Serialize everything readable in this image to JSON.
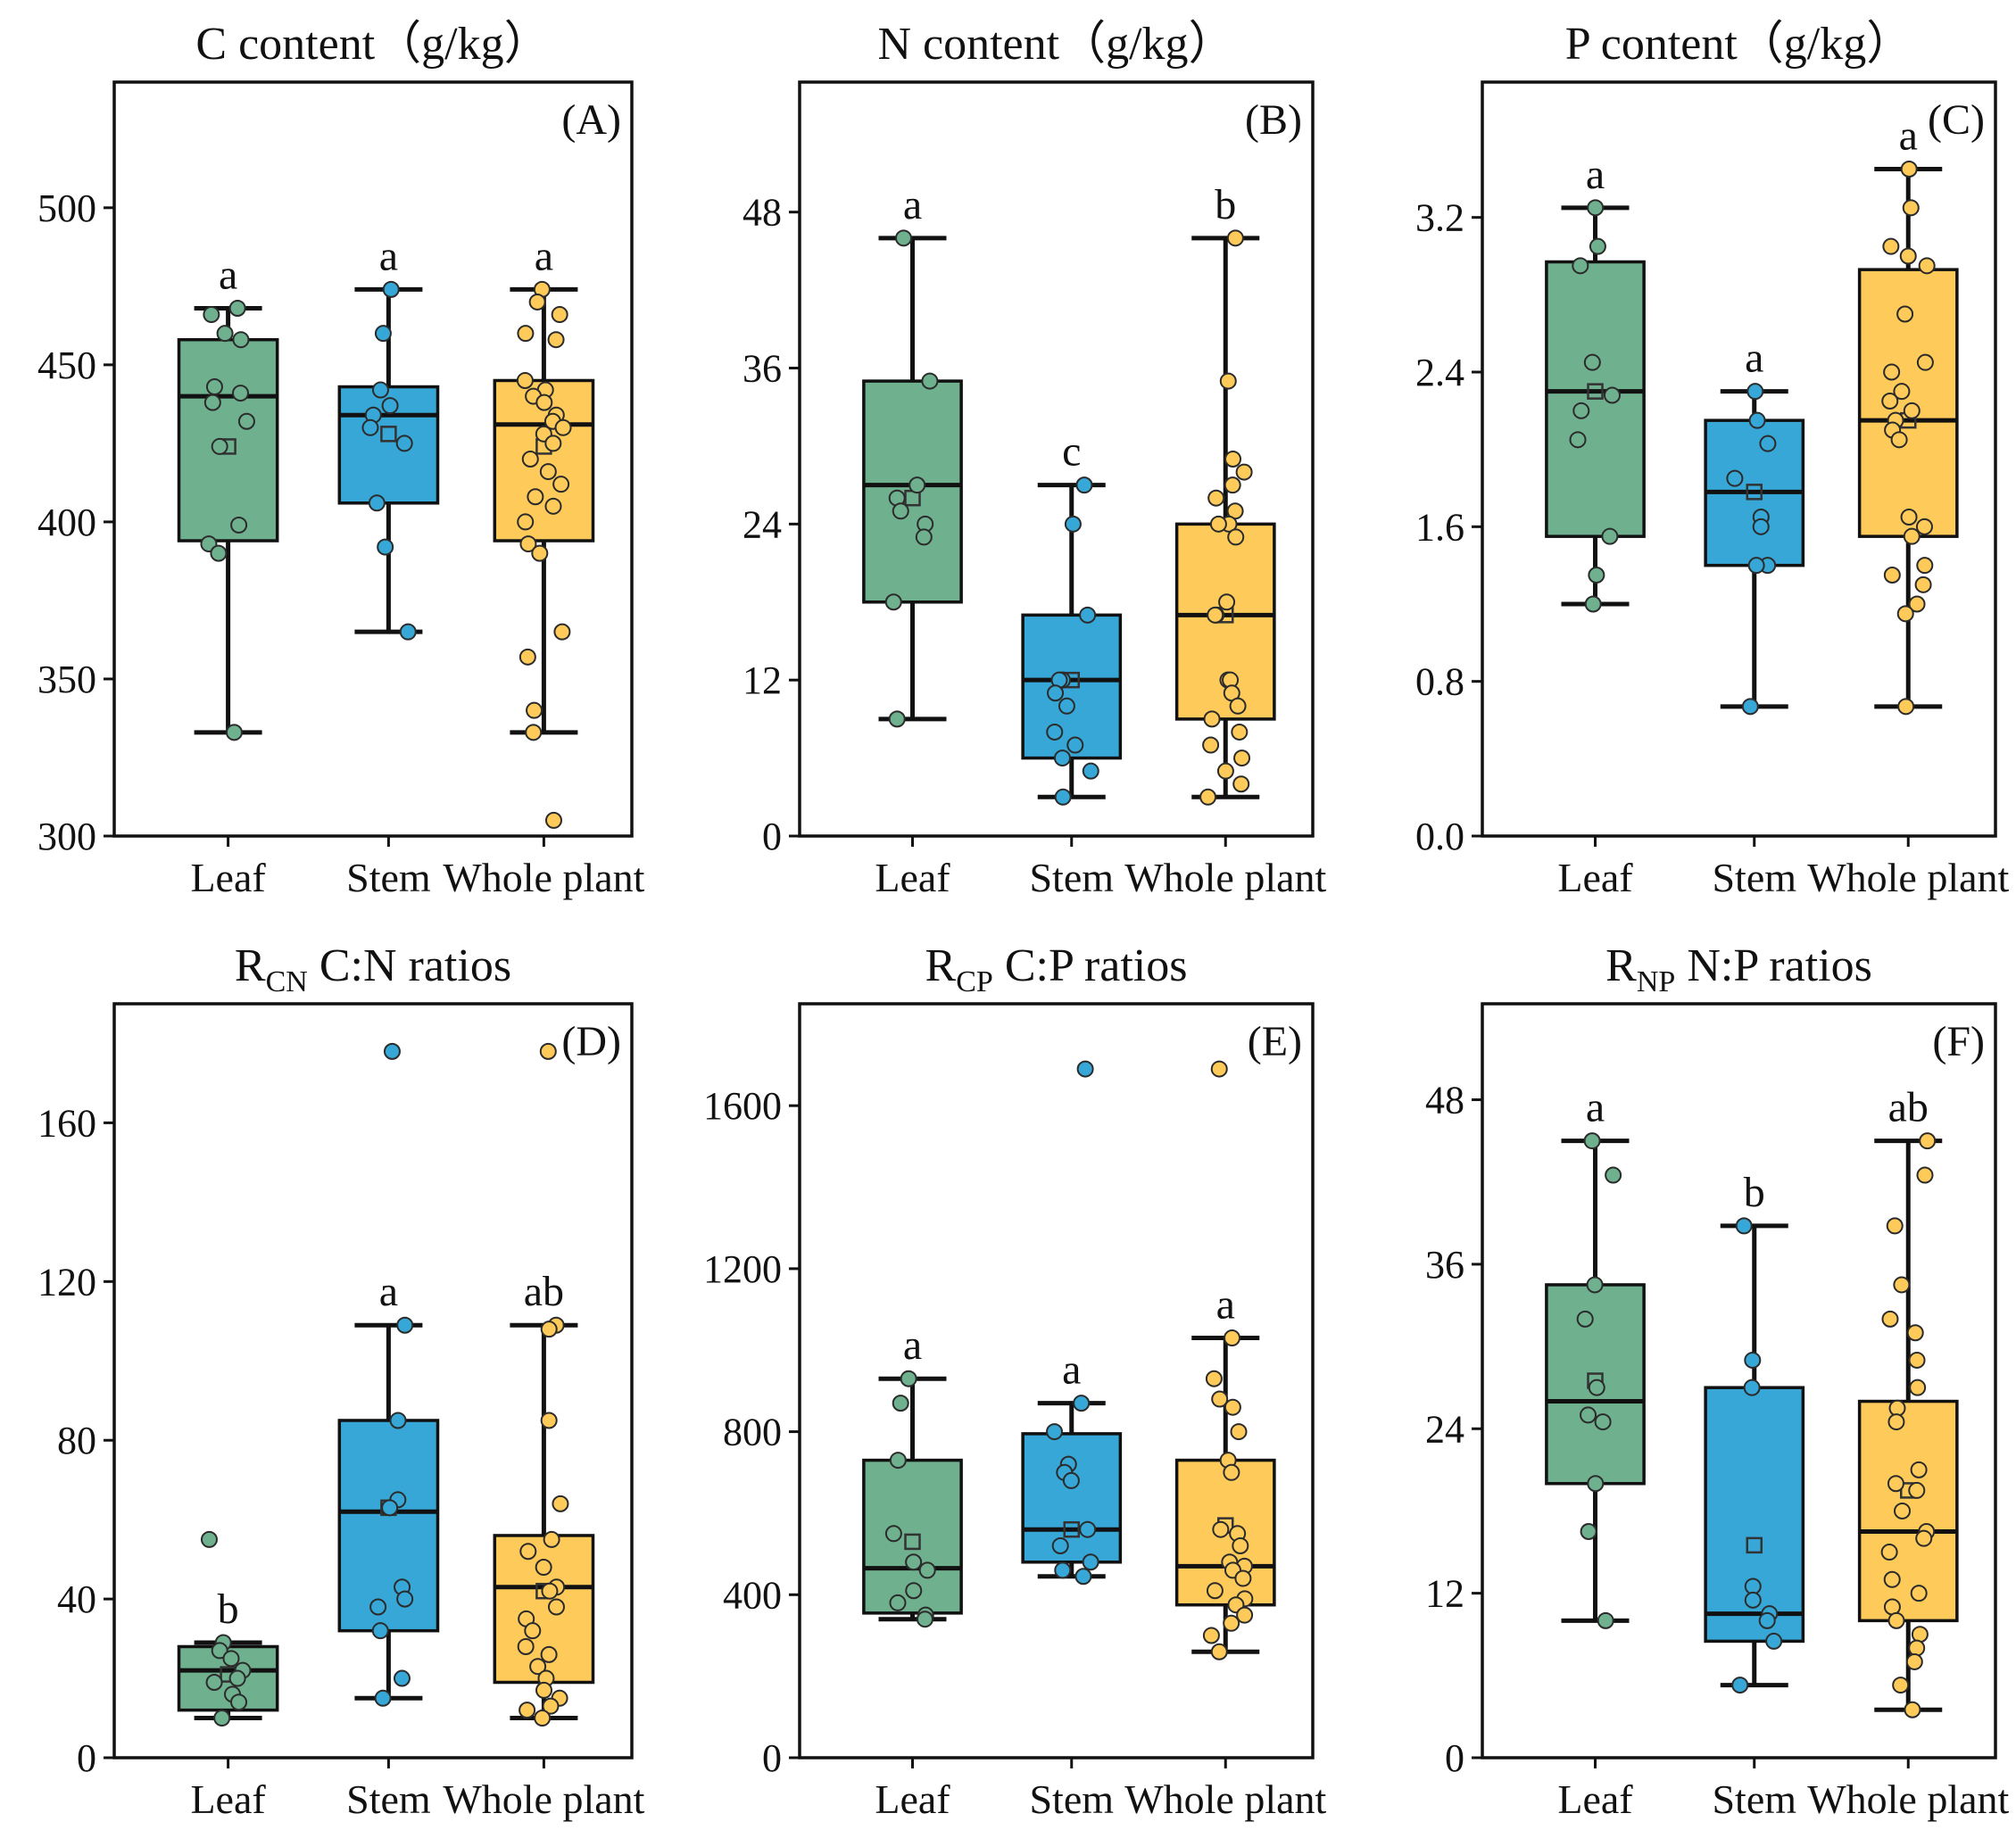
{
  "colors": {
    "Leaf": "#6fb08f",
    "Stem": "#36a7d6",
    "Whole plant": "#fecb5a"
  },
  "chart_data": [
    {
      "type": "box",
      "id": "A",
      "title": "C content（g/kg）",
      "title_sub": "",
      "panel_label": "(A)",
      "ylim": [
        300,
        540
      ],
      "yticks": [
        300,
        350,
        400,
        450,
        500
      ],
      "categories": [
        "Leaf",
        "Stem",
        "Whole plant"
      ],
      "groups": [
        {
          "name": "Leaf",
          "letter": "a",
          "whisker_low": 333,
          "q1": 394,
          "median": 440,
          "q3": 458,
          "whisker_high": 468,
          "mean": 424,
          "points": [
            468,
            466,
            460,
            458,
            443,
            441,
            438,
            432,
            424,
            399,
            393,
            390,
            333
          ]
        },
        {
          "name": "Stem",
          "letter": "a",
          "whisker_low": 365,
          "q1": 406,
          "median": 434,
          "q3": 443,
          "whisker_high": 474,
          "mean": 428,
          "points": [
            474,
            460,
            442,
            437,
            434,
            430,
            425,
            406,
            392,
            365
          ]
        },
        {
          "name": "Whole plant",
          "letter": "a",
          "whisker_low": 333,
          "q1": 394,
          "median": 431,
          "q3": 445,
          "whisker_high": 474,
          "mean": 424,
          "points": [
            474,
            470,
            466,
            460,
            458,
            445,
            442,
            440,
            438,
            434,
            432,
            430,
            428,
            425,
            420,
            416,
            412,
            408,
            405,
            400,
            393,
            390,
            365,
            357,
            340,
            333,
            305
          ]
        }
      ]
    },
    {
      "type": "box",
      "id": "B",
      "title": "N content（g/kg）",
      "title_sub": "",
      "panel_label": "(B)",
      "ylim": [
        0,
        58
      ],
      "yticks": [
        0,
        12,
        24,
        36,
        48
      ],
      "categories": [
        "Leaf",
        "Stem",
        "Whole plant"
      ],
      "groups": [
        {
          "name": "Leaf",
          "letter": "a",
          "whisker_low": 9,
          "q1": 18,
          "median": 27,
          "q3": 35,
          "whisker_high": 46,
          "mean": 26,
          "points": [
            46,
            35,
            27,
            26,
            25,
            24,
            23,
            18,
            9
          ]
        },
        {
          "name": "Stem",
          "letter": "c",
          "whisker_low": 3,
          "q1": 6,
          "median": 12,
          "q3": 17,
          "whisker_high": 27,
          "mean": 12,
          "points": [
            27,
            24,
            17,
            12,
            12,
            11,
            10,
            8,
            7,
            6,
            5,
            3
          ]
        },
        {
          "name": "Whole plant",
          "letter": "b",
          "whisker_low": 3,
          "q1": 9,
          "median": 17,
          "q3": 24,
          "whisker_high": 46,
          "mean": 17,
          "points": [
            46,
            35,
            29,
            28,
            27,
            26,
            25,
            24,
            24,
            23,
            18,
            17,
            17,
            12,
            12,
            11,
            10,
            9,
            8,
            7,
            6,
            5,
            4,
            3
          ]
        }
      ]
    },
    {
      "type": "box",
      "id": "C",
      "title": "P content（g/kg）",
      "title_sub": "",
      "panel_label": "(C)",
      "ylim": [
        0,
        3.9
      ],
      "yticks": [
        0.0,
        0.8,
        1.6,
        2.4,
        3.2
      ],
      "yticks_text": [
        "0.0",
        "0.8",
        "1.6",
        "2.4",
        "3.2"
      ],
      "categories": [
        "Leaf",
        "Stem",
        "Whole plant"
      ],
      "groups": [
        {
          "name": "Leaf",
          "letter": "a",
          "whisker_low": 1.2,
          "q1": 1.55,
          "median": 2.3,
          "q3": 2.97,
          "whisker_high": 3.25,
          "mean": 2.3,
          "points": [
            3.25,
            3.05,
            2.95,
            2.45,
            2.28,
            2.2,
            2.05,
            1.55,
            1.35,
            1.2
          ]
        },
        {
          "name": "Stem",
          "letter": "a",
          "whisker_low": 0.67,
          "q1": 1.4,
          "median": 1.78,
          "q3": 2.15,
          "whisker_high": 2.3,
          "mean": 1.78,
          "points": [
            2.3,
            2.15,
            2.03,
            1.85,
            1.65,
            1.6,
            1.4,
            1.4,
            0.67
          ]
        },
        {
          "name": "Whole plant",
          "letter": "a",
          "whisker_low": 0.67,
          "q1": 1.55,
          "median": 2.15,
          "q3": 2.93,
          "whisker_high": 3.45,
          "mean": 2.15,
          "points": [
            3.45,
            3.25,
            3.05,
            3.0,
            2.95,
            2.7,
            2.45,
            2.4,
            2.3,
            2.25,
            2.2,
            2.15,
            2.1,
            2.05,
            1.65,
            1.6,
            1.55,
            1.4,
            1.35,
            1.3,
            1.2,
            1.15,
            0.67
          ]
        }
      ]
    },
    {
      "type": "box",
      "id": "D",
      "title": "R",
      "title_sub": "CN",
      "title_rest": " C:N ratios",
      "panel_label": "(D)",
      "ylim": [
        0,
        190
      ],
      "yticks": [
        0,
        40,
        80,
        120,
        160
      ],
      "categories": [
        "Leaf",
        "Stem",
        "Whole plant"
      ],
      "groups": [
        {
          "name": "Leaf",
          "letter": "b",
          "whisker_low": 10,
          "q1": 12,
          "median": 22,
          "q3": 28,
          "whisker_high": 29,
          "mean": 21,
          "points": [
            55,
            29,
            27,
            25,
            22,
            20,
            19,
            16,
            14,
            10
          ]
        },
        {
          "name": "Stem",
          "letter": "a",
          "whisker_low": 15,
          "q1": 32,
          "median": 62,
          "q3": 85,
          "whisker_high": 109,
          "mean": 63,
          "points": [
            178,
            109,
            85,
            65,
            63,
            43,
            40,
            38,
            32,
            20,
            15
          ]
        },
        {
          "name": "Whole plant",
          "letter": "ab",
          "whisker_low": 10,
          "q1": 19,
          "median": 43,
          "q3": 56,
          "whisker_high": 109,
          "mean": 42,
          "points": [
            178,
            109,
            108,
            85,
            64,
            55,
            52,
            48,
            43,
            42,
            38,
            35,
            32,
            28,
            26,
            23,
            20,
            17,
            15,
            13,
            12,
            10
          ]
        }
      ]
    },
    {
      "type": "box",
      "id": "E",
      "title": "R",
      "title_sub": "CP",
      "title_rest": " C:P ratios",
      "panel_label": "(E)",
      "ylim": [
        0,
        1850
      ],
      "yticks": [
        0,
        400,
        800,
        1200,
        1600
      ],
      "categories": [
        "Leaf",
        "Stem",
        "Whole plant"
      ],
      "groups": [
        {
          "name": "Leaf",
          "letter": "a",
          "whisker_low": 340,
          "q1": 355,
          "median": 465,
          "q3": 730,
          "whisker_high": 930,
          "mean": 530,
          "points": [
            930,
            870,
            730,
            550,
            480,
            460,
            410,
            380,
            350,
            340
          ]
        },
        {
          "name": "Stem",
          "letter": "a",
          "whisker_low": 445,
          "q1": 480,
          "median": 560,
          "q3": 795,
          "whisker_high": 870,
          "mean": 560,
          "points": [
            1690,
            870,
            800,
            720,
            700,
            680,
            560,
            520,
            480,
            460,
            445
          ]
        },
        {
          "name": "Whole plant",
          "letter": "a",
          "whisker_low": 260,
          "q1": 375,
          "median": 470,
          "q3": 730,
          "whisker_high": 1030,
          "mean": 570,
          "points": [
            1690,
            1030,
            930,
            880,
            860,
            800,
            730,
            700,
            560,
            550,
            520,
            480,
            470,
            460,
            440,
            410,
            390,
            375,
            350,
            330,
            300,
            260
          ]
        }
      ]
    },
    {
      "type": "box",
      "id": "F",
      "title": "R",
      "title_sub": "NP",
      "title_rest": " N:P ratios",
      "panel_label": "(F)",
      "ylim": [
        0,
        55
      ],
      "yticks": [
        0,
        12,
        24,
        36,
        48
      ],
      "categories": [
        "Leaf",
        "Stem",
        "Whole plant"
      ],
      "groups": [
        {
          "name": "Leaf",
          "letter": "a",
          "whisker_low": 10,
          "q1": 20,
          "median": 26,
          "q3": 34.5,
          "whisker_high": 45,
          "mean": 27.5,
          "points": [
            45,
            42.5,
            34.5,
            32,
            27,
            25,
            24.5,
            20,
            16.5,
            10
          ]
        },
        {
          "name": "Stem",
          "letter": "b",
          "whisker_low": 5.3,
          "q1": 8.5,
          "median": 10.5,
          "q3": 27,
          "whisker_high": 38.8,
          "mean": 15.5,
          "points": [
            38.8,
            29,
            27,
            12.5,
            11.5,
            10.5,
            10,
            8.5,
            5.3
          ]
        },
        {
          "name": "Whole plant",
          "letter": "ab",
          "whisker_low": 3.5,
          "q1": 10,
          "median": 16.5,
          "q3": 26,
          "whisker_high": 45,
          "mean": 19.5,
          "points": [
            45,
            42.5,
            38.8,
            34.5,
            32,
            31,
            29,
            27,
            25.5,
            24.5,
            21,
            20,
            19.5,
            18,
            16.5,
            16,
            15,
            13,
            12,
            11,
            10,
            9,
            8,
            7,
            5.3,
            3.5
          ]
        }
      ]
    }
  ]
}
